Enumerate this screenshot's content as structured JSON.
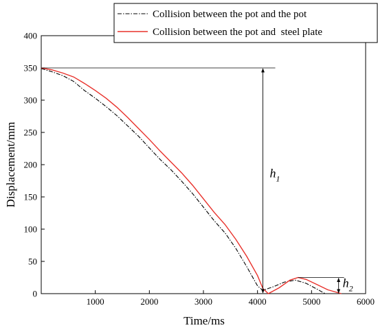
{
  "chart_data": {
    "type": "line",
    "xlabel": "Time/ms",
    "ylabel": "Displacement/mm",
    "xlim": [
      0,
      6000
    ],
    "ylim": [
      0,
      400
    ],
    "xticks": [
      1000,
      2000,
      3000,
      4000,
      5000,
      6000
    ],
    "yticks": [
      0,
      50,
      100,
      150,
      200,
      250,
      300,
      350,
      400
    ],
    "grid": false,
    "legend_position": "top",
    "series": [
      {
        "name": "Collision between the pot and the pot",
        "color": "#000000",
        "line_style": "dash-dot",
        "x": [
          0,
          200,
          400,
          600,
          800,
          1000,
          1200,
          1400,
          1600,
          1800,
          2000,
          2200,
          2400,
          2600,
          2800,
          3000,
          3200,
          3400,
          3600,
          3800,
          4000,
          4100,
          4300,
          4500,
          4700,
          4900,
          5100,
          5250
        ],
        "y": [
          349,
          344,
          338,
          329,
          315,
          303,
          290,
          276,
          260,
          244,
          226,
          208,
          192,
          174,
          155,
          134,
          113,
          94,
          70,
          42,
          12,
          5,
          11,
          18,
          21,
          16,
          7,
          0
        ]
      },
      {
        "name": "Collision between the pot and  steel plate",
        "color": "#e8302a",
        "line_style": "solid",
        "x": [
          0,
          200,
          400,
          600,
          800,
          1000,
          1200,
          1400,
          1600,
          1800,
          2000,
          2200,
          2400,
          2600,
          2800,
          3000,
          3200,
          3400,
          3600,
          3800,
          4000,
          4100,
          4200,
          4400,
          4600,
          4750,
          4900,
          5100,
          5300,
          5550
        ],
        "y": [
          350,
          347,
          342,
          336,
          326,
          315,
          303,
          289,
          273,
          256,
          239,
          221,
          204,
          187,
          168,
          147,
          126,
          107,
          84,
          58,
          28,
          8,
          0,
          9,
          21,
          25,
          22,
          14,
          6,
          0
        ]
      }
    ],
    "annotations": [
      {
        "label": "h",
        "subscript": "1",
        "x_start": 0,
        "x_at": 4100,
        "y_top": 350,
        "y_bottom": 0
      },
      {
        "label": "h",
        "subscript": "2",
        "x_start": 4750,
        "x_at": 5500,
        "y_top": 25,
        "y_bottom": 0
      }
    ]
  }
}
